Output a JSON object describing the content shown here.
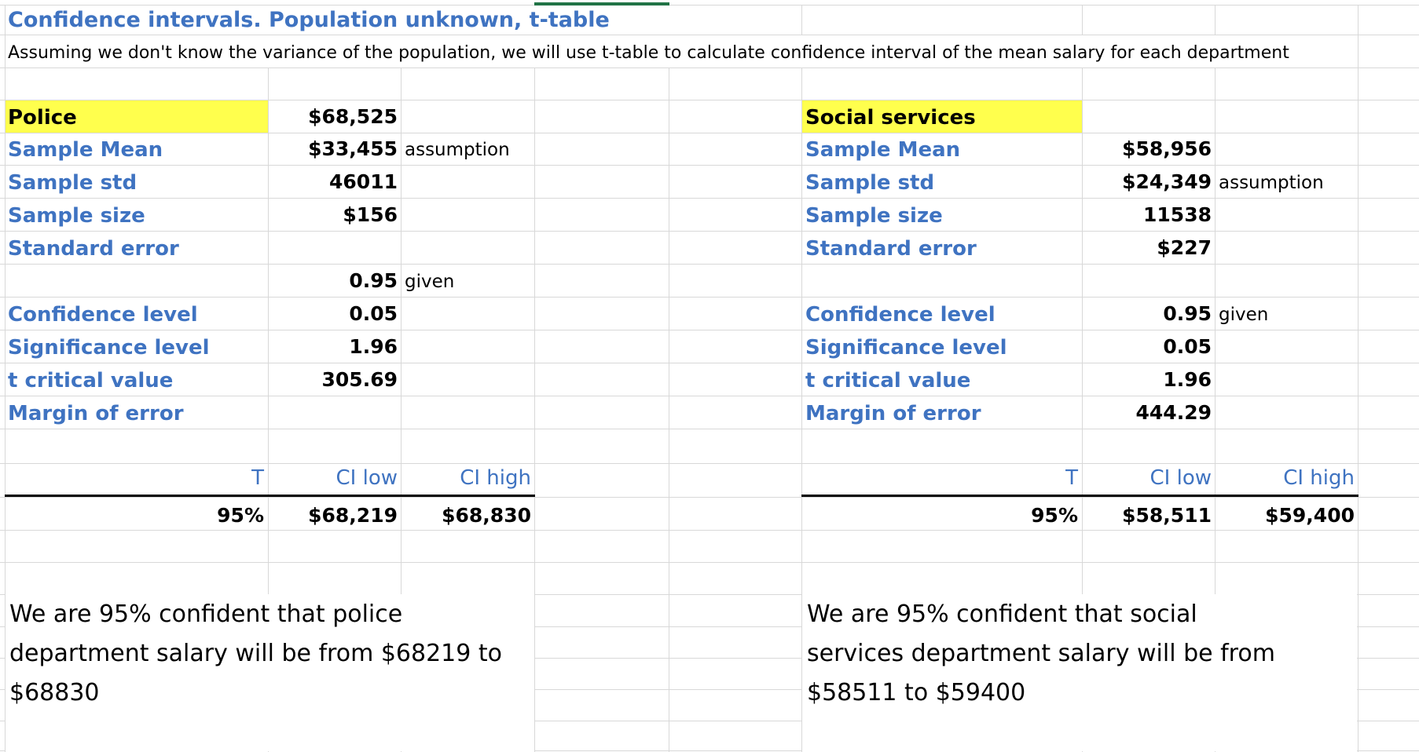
{
  "header": {
    "title": "Confidence intervals. Population unknown, t-table",
    "subtitle": "Assuming we don't know the variance of the population, we will use t-table to calculate confidence interval of the mean salary for each department"
  },
  "police": {
    "name": "Police",
    "name_value": "$68,525",
    "rows": [
      {
        "label": "Sample Mean",
        "value": "$33,455",
        "note": "assumption"
      },
      {
        "label": "Sample std",
        "value": "46011",
        "note": ""
      },
      {
        "label": "Sample size",
        "value": "$156",
        "note": ""
      },
      {
        "label": "Standard error",
        "value": "",
        "note": ""
      }
    ],
    "blank_row": {
      "value": "0.95",
      "note": "given"
    },
    "rows2": [
      {
        "label": "Confidence level",
        "value": "0.05",
        "note": ""
      },
      {
        "label": "Significance level",
        "value": "1.96",
        "note": ""
      },
      {
        "label": "t critical value",
        "value": "305.69",
        "note": ""
      },
      {
        "label": "Margin of error",
        "value": "",
        "note": ""
      }
    ],
    "ci_table": {
      "headers": [
        "T",
        "CI low",
        "CI high"
      ],
      "row": [
        "95%",
        "$68,219",
        "$68,830"
      ]
    },
    "conclusion": "We are 95% confident that police department salary will be from $68219 to $68830"
  },
  "social": {
    "name": "Social services",
    "rows": [
      {
        "label": "Sample Mean",
        "value": "$58,956",
        "note": ""
      },
      {
        "label": "Sample std",
        "value": "$24,349",
        "note": "assumption"
      },
      {
        "label": "Sample size",
        "value": "11538",
        "note": ""
      },
      {
        "label": "Standard error",
        "value": "$227",
        "note": ""
      }
    ],
    "rows2": [
      {
        "label": "Confidence level",
        "value": "0.95",
        "note": "given"
      },
      {
        "label": "Significance level",
        "value": "0.05",
        "note": ""
      },
      {
        "label": "t critical value",
        "value": "1.96",
        "note": ""
      },
      {
        "label": "Margin of error",
        "value": "444.29",
        "note": ""
      }
    ],
    "ci_table": {
      "headers": [
        "T",
        "CI low",
        "CI high"
      ],
      "row": [
        "95%",
        "$58,511",
        "$59,400"
      ]
    },
    "conclusion": "We are 95% confident that social services department salary will be from $58511 to $59400"
  },
  "colors": {
    "label_blue": "#3f73c1",
    "highlight_yellow": "#ffff4d",
    "grid_gray": "#d8d8d8",
    "selected_cell_green": "#217346"
  }
}
